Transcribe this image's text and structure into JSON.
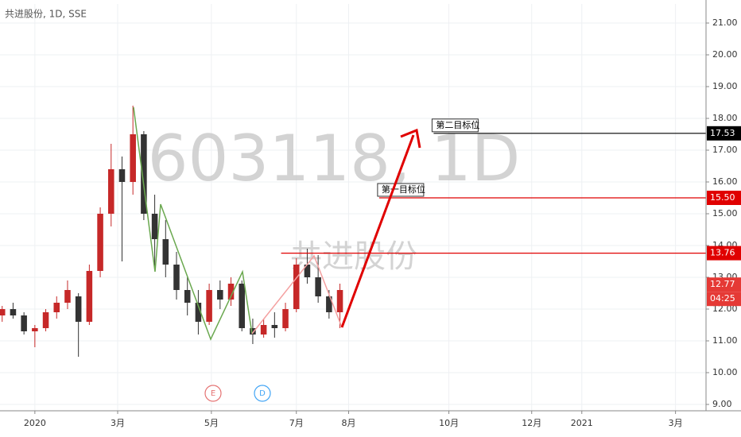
{
  "chart_data": {
    "type": "candlestick",
    "title": "共进股份, 1D, SSE",
    "watermark": "603118, 1D",
    "watermark_subtitle": "共进股份",
    "x": [
      -15,
      -10,
      -5,
      0,
      5,
      10,
      15,
      20,
      25,
      30,
      35,
      40,
      45,
      50,
      55,
      60,
      65,
      70,
      75,
      80,
      85,
      90,
      95,
      100,
      105,
      110,
      115,
      120,
      125,
      130,
      135,
      140
    ],
    "open": [
      11.8,
      12.0,
      11.8,
      11.3,
      11.4,
      11.9,
      12.2,
      12.4,
      11.6,
      13.2,
      15.0,
      16.4,
      16.0,
      17.5,
      15.0,
      14.2,
      13.4,
      12.6,
      12.2,
      11.6,
      12.6,
      12.3,
      12.8,
      11.4,
      11.2,
      11.5,
      11.4,
      12.0,
      13.4,
      13.0,
      12.4,
      11.9
    ],
    "high": [
      12.1,
      12.2,
      11.9,
      11.5,
      12.0,
      12.4,
      12.9,
      12.5,
      13.4,
      15.2,
      17.2,
      16.8,
      18.4,
      17.6,
      15.6,
      14.8,
      13.8,
      13.0,
      12.6,
      12.8,
      12.9,
      13.0,
      12.9,
      11.7,
      11.7,
      11.9,
      12.2,
      13.6,
      13.9,
      13.7,
      12.6,
      12.8
    ],
    "low": [
      11.6,
      11.7,
      11.2,
      10.8,
      11.3,
      11.7,
      12.0,
      10.5,
      11.5,
      13.0,
      14.6,
      13.5,
      15.6,
      14.8,
      13.3,
      13.0,
      12.3,
      11.8,
      11.2,
      11.5,
      12.0,
      12.1,
      11.3,
      10.9,
      11.1,
      11.1,
      11.3,
      11.9,
      12.8,
      12.2,
      11.7,
      11.4
    ],
    "close": [
      12.0,
      11.8,
      11.3,
      11.4,
      11.9,
      12.2,
      12.6,
      11.6,
      13.2,
      15.0,
      16.4,
      16.0,
      17.5,
      15.0,
      14.2,
      13.4,
      12.6,
      12.2,
      11.6,
      12.6,
      12.3,
      12.8,
      11.4,
      11.2,
      11.5,
      11.4,
      12.0,
      13.4,
      13.0,
      12.4,
      11.9,
      12.6
    ],
    "up_color": "#c62828",
    "down_color": "#333333",
    "xlim": [
      -16,
      308
    ],
    "xticks": [
      {
        "value": 0,
        "label": "2020"
      },
      {
        "value": 38,
        "label": "3月"
      },
      {
        "value": 81,
        "label": "5月"
      },
      {
        "value": 120,
        "label": "7月"
      },
      {
        "value": 144,
        "label": "8月"
      },
      {
        "value": 190,
        "label": "10月"
      },
      {
        "value": 228,
        "label": "12月"
      },
      {
        "value": 251,
        "label": "2021"
      },
      {
        "value": 294,
        "label": "3月"
      }
    ],
    "ylim": [
      8.8,
      21.6
    ],
    "yticks": [
      {
        "value": 9,
        "label": "9.00"
      },
      {
        "value": 10,
        "label": "10.00"
      },
      {
        "value": 11,
        "label": "11.00"
      },
      {
        "value": 12,
        "label": "12.00"
      },
      {
        "value": 13,
        "label": "13.00"
      },
      {
        "value": 14,
        "label": "14.00"
      },
      {
        "value": 15,
        "label": "15.00"
      },
      {
        "value": 16,
        "label": "16.00"
      },
      {
        "value": 17,
        "label": "17.00"
      },
      {
        "value": 18,
        "label": "18.00"
      },
      {
        "value": 19,
        "label": "19.00"
      },
      {
        "value": 20,
        "label": "20.00"
      },
      {
        "value": 21,
        "label": "21.00"
      }
    ],
    "grid": true,
    "levels": [
      {
        "value": 17.53,
        "start": 183,
        "color": "#000000",
        "note": "第二目标位"
      },
      {
        "value": {
          "value": 15.5,
          "label": "15.50"
        },
        "start": 158,
        "color": "#e00000",
        "note": "第一目标位"
      },
      {
        "value": 13.76,
        "start": 113,
        "color": "#e00000"
      }
    ],
    "price_labels": [
      {
        "value": 12.77,
        "color": "#e53935"
      }
    ],
    "countdown": "04:25",
    "events": [
      "E",
      "D"
    ]
  }
}
